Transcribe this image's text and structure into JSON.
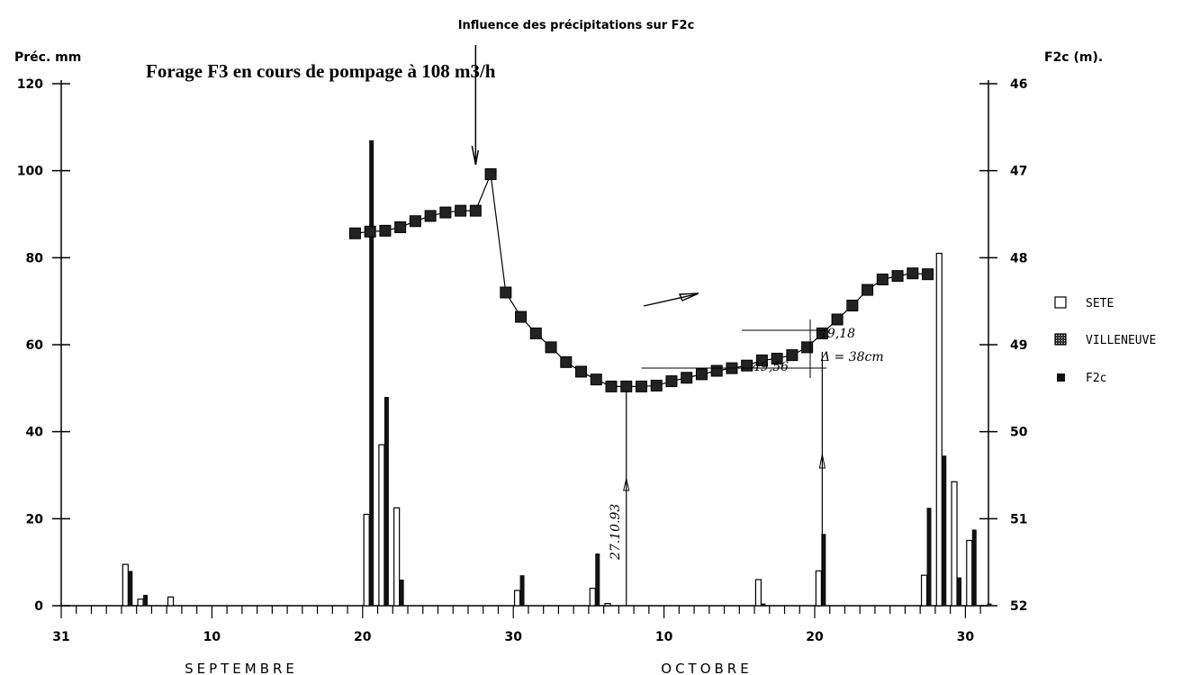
{
  "chart_data": {
    "type": "bar",
    "title": "Influence des précipitations sur F2c",
    "annotation": "Forage F3 en cours de pompage à 108 m3/h",
    "y_left_label": "Préc. mm",
    "y_right_label": "F2c (m).",
    "ylim_left": [
      0,
      120
    ],
    "ylim_right": [
      52,
      46
    ],
    "right_axis_inverted": true,
    "yticks_left": [
      "0",
      "20",
      "40",
      "60",
      "80",
      "100",
      "120"
    ],
    "yticks_right": [
      "52",
      "51",
      "50",
      "49",
      "48",
      "47",
      "46"
    ],
    "x_tick_labels": [
      "31",
      "10",
      "20",
      "30",
      "10",
      "20",
      "30"
    ],
    "months": [
      "SEPTEMBRE",
      "OCTOBRE"
    ],
    "grid": false,
    "legend_position": "right",
    "legend": [
      {
        "name": "SETE",
        "style": "open"
      },
      {
        "name": "VILLENEUVE",
        "style": "hatched"
      },
      {
        "name": "F2c",
        "style": "filled-square"
      }
    ],
    "series": [
      {
        "name": "SETE",
        "axis": "left",
        "x_day": [
          4,
          5,
          7,
          20,
          21,
          22,
          30,
          35,
          36,
          46,
          50,
          57,
          58,
          59,
          60
        ],
        "values": [
          9.5,
          1.5,
          2,
          21,
          37,
          22.5,
          3.5,
          4,
          0.5,
          6,
          8,
          7,
          81,
          28.5,
          15
        ]
      },
      {
        "name": "VILLENEUVE",
        "axis": "left",
        "x_day": [
          4,
          5,
          20,
          21,
          22,
          30,
          35,
          46,
          50,
          57,
          58,
          59,
          60,
          61
        ],
        "values": [
          8,
          2.5,
          107,
          48,
          6,
          7,
          12,
          0.5,
          16.5,
          22.5,
          34.5,
          6.5,
          17.5,
          0.5
        ]
      },
      {
        "name": "F2c",
        "axis": "right",
        "x_day": [
          19,
          20,
          21,
          22,
          23,
          24,
          25,
          26,
          27,
          28,
          29,
          30,
          31,
          32,
          33,
          34,
          35,
          36,
          37,
          38,
          39,
          40,
          41,
          42,
          43,
          44,
          45,
          46,
          47,
          48,
          49,
          50,
          51,
          52,
          53,
          54,
          55,
          56,
          57
        ],
        "values": [
          47.72,
          47.7,
          47.69,
          47.65,
          47.58,
          47.52,
          47.48,
          47.46,
          47.46,
          47.04,
          48.4,
          48.68,
          48.87,
          49.03,
          49.2,
          49.31,
          49.4,
          49.48,
          49.48,
          49.48,
          49.47,
          49.42,
          49.38,
          49.34,
          49.3,
          49.27,
          49.24,
          49.18,
          49.16,
          49.12,
          49.03,
          48.87,
          48.71,
          48.55,
          48.37,
          48.25,
          48.21,
          48.18,
          48.19
        ]
      }
    ],
    "annotations": [
      {
        "label": "27.10.93",
        "x_day": 37
      },
      {
        "label": "49,18"
      },
      {
        "label": "49,56"
      },
      {
        "label": "Δ = 38cm"
      }
    ]
  }
}
